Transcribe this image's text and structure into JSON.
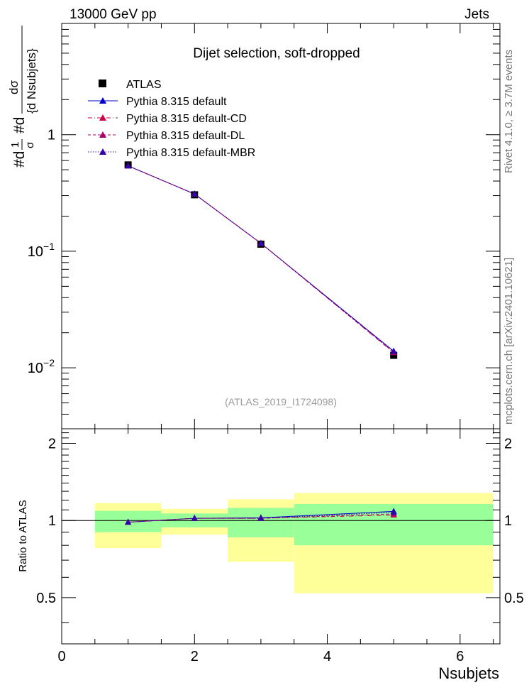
{
  "header": {
    "left": "13000 GeV pp",
    "right": "Jets"
  },
  "side_text": {
    "upper": "Rivet 4.1.0, ≥ 3.7M events",
    "lower": "mcplots.cern.ch [arXiv:2401.10621]"
  },
  "ylabel_main": {
    "prefix": "#d",
    "frac1_num": "1",
    "frac1_den": "σ",
    "mid": "#d",
    "frac2_num": "dσ",
    "frac2_den": "{d Nsubjets}"
  },
  "colors": {
    "data": "#000000",
    "default": "#0000cc",
    "cd": "#cc0044",
    "dl": "#aa0066",
    "mbr": "#3300aa",
    "band_inner": "#99ff99",
    "band_outer": "#ffff99",
    "analysis_label": "#999999"
  },
  "chart_data": [
    {
      "type": "scatter",
      "title": "Dijet selection, soft-dropped",
      "annotation": "(ATLAS_2019_I1724098)",
      "xlabel": "Nsubjets",
      "ylabel": "#d 1/σ #d dσ/{d Nsubjets}",
      "xlim": [
        0,
        6.6
      ],
      "ylim": [
        0.003,
        9
      ],
      "yscale": "log",
      "y_ticks": [
        "1",
        "10^-1",
        "10^-2"
      ],
      "legend_position": "top-left",
      "x": [
        1,
        2,
        3,
        5
      ],
      "series": [
        {
          "name": "ATLAS",
          "key": "data",
          "marker": "square",
          "line": "none",
          "values": [
            0.55,
            0.305,
            0.115,
            0.0128
          ]
        },
        {
          "name": "Pythia 8.315 default",
          "key": "default",
          "marker": "triangle",
          "line": "solid",
          "values": [
            0.54,
            0.31,
            0.117,
            0.0139
          ]
        },
        {
          "name": "Pythia 8.315 default-CD",
          "key": "cd",
          "marker": "triangle",
          "line": "dashdot",
          "values": [
            0.54,
            0.31,
            0.117,
            0.0135
          ]
        },
        {
          "name": "Pythia 8.315 default-DL",
          "key": "dl",
          "marker": "triangle",
          "line": "dashed",
          "values": [
            0.54,
            0.31,
            0.117,
            0.0136
          ]
        },
        {
          "name": "Pythia 8.315 default-MBR",
          "key": "mbr",
          "marker": "triangle",
          "line": "dotted",
          "values": [
            0.54,
            0.31,
            0.117,
            0.0138
          ]
        }
      ]
    },
    {
      "type": "scatter",
      "xlabel": "Nsubjets",
      "ylabel": "Ratio to ATLAS",
      "xlim": [
        0,
        6.6
      ],
      "ylim": [
        0.33,
        2.28
      ],
      "x_ticks": [
        "0",
        "2",
        "4",
        "6"
      ],
      "y_ticks": [
        "0.5",
        "1",
        "2"
      ],
      "bands": [
        {
          "x_range": [
            0.5,
            1.5
          ],
          "inner": [
            0.9,
            1.09
          ],
          "outer": [
            0.78,
            1.17
          ]
        },
        {
          "x_range": [
            1.5,
            2.5
          ],
          "inner": [
            0.94,
            1.065
          ],
          "outer": [
            0.88,
            1.11
          ]
        },
        {
          "x_range": [
            2.5,
            3.5
          ],
          "inner": [
            0.86,
            1.12
          ],
          "outer": [
            0.69,
            1.21
          ]
        },
        {
          "x_range": [
            3.5,
            6.5
          ],
          "inner": [
            0.8,
            1.16
          ],
          "outer": [
            0.52,
            1.28
          ]
        }
      ],
      "x": [
        1,
        2,
        3,
        5
      ],
      "series": [
        {
          "name": "Pythia 8.315 default",
          "key": "default",
          "values": [
            0.985,
            1.02,
            1.025,
            1.085
          ]
        },
        {
          "name": "Pythia 8.315 default-CD",
          "key": "cd",
          "values": [
            0.985,
            1.02,
            1.02,
            1.05
          ]
        },
        {
          "name": "Pythia 8.315 default-DL",
          "key": "dl",
          "values": [
            0.985,
            1.02,
            1.02,
            1.06
          ]
        },
        {
          "name": "Pythia 8.315 default-MBR",
          "key": "mbr",
          "values": [
            0.985,
            1.02,
            1.02,
            1.075
          ]
        }
      ]
    }
  ]
}
